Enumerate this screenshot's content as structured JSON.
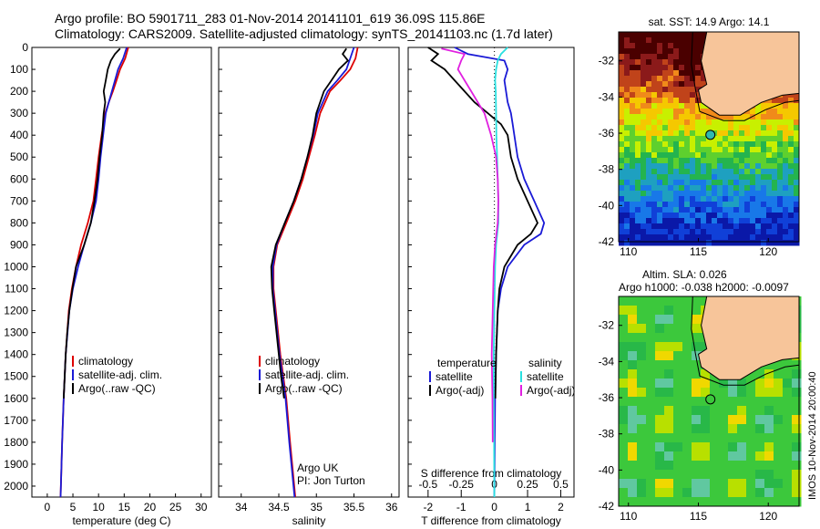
{
  "header": {
    "line1": "Argo profile: BO 5901711_283 01-Nov-2014 20141101_619 36.09S 115.86E",
    "line2": "Climatology: CARS2009. Satellite-adjusted climatology: synTS_20141103.nc (1.7d later)"
  },
  "side_stamp": "IMOS 10-Nov-2014 20:00:40",
  "colors": {
    "climatology": "#dd0000",
    "satellite": "#1a1ad6",
    "argo": "#000000",
    "salinity_satellite": "#29e0e0",
    "salinity_argo": "#e020e0",
    "land": "#f7c59a"
  },
  "chart_data": [
    {
      "type": "line",
      "xlabel": "temperature (deg C)",
      "ylabel": "",
      "xlim": [
        -3,
        32
      ],
      "ylim": [
        0,
        2050
      ],
      "y_reversed": true,
      "xticks": [
        "0",
        "5",
        "10",
        "15",
        "20",
        "25",
        "30"
      ],
      "yticks": [
        "0",
        "100",
        "200",
        "300",
        "400",
        "500",
        "600",
        "700",
        "800",
        "900",
        "1000",
        "1100",
        "1200",
        "1300",
        "1400",
        "1500",
        "1600",
        "1700",
        "1800",
        "1900",
        "2000"
      ],
      "legend": {
        "placement": "center",
        "entries": [
          "climatology",
          "satellite-adj. clim.",
          "Argo(..raw -QC)"
        ]
      },
      "series": [
        {
          "name": "climatology",
          "color": "#dd0000",
          "depth": [
            0,
            50,
            100,
            150,
            200,
            250,
            300,
            400,
            500,
            600,
            700,
            800,
            900,
            1000,
            1100,
            1200,
            1400,
            1600,
            1800,
            2050
          ],
          "values": [
            15.8,
            15.2,
            14.2,
            13.5,
            12.8,
            12.0,
            11.3,
            10.6,
            10.0,
            9.5,
            9.0,
            7.9,
            6.6,
            5.6,
            4.8,
            4.2,
            3.6,
            3.2,
            2.9,
            2.6
          ]
        },
        {
          "name": "satellite-adj. clim.",
          "color": "#1a1ad6",
          "depth": [
            0,
            50,
            100,
            150,
            200,
            250,
            300,
            400,
            500,
            600,
            700,
            800,
            900,
            1000,
            1100,
            1200,
            1400,
            1600,
            1800,
            2050
          ],
          "values": [
            15.5,
            14.8,
            13.8,
            13.2,
            12.6,
            12.0,
            11.4,
            10.9,
            10.4,
            10.0,
            9.5,
            8.5,
            7.2,
            6.0,
            5.0,
            4.3,
            3.6,
            3.2,
            2.9,
            2.6
          ]
        },
        {
          "name": "Argo(..raw -QC)",
          "color": "#000000",
          "depth": [
            5,
            30,
            60,
            100,
            150,
            200,
            250,
            300,
            400,
            500,
            600,
            700,
            800,
            900,
            1000,
            1100,
            1200,
            1300,
            1400,
            1500,
            1600
          ],
          "values": [
            14.2,
            13.2,
            12.4,
            11.8,
            11.4,
            11.0,
            11.3,
            11.0,
            10.7,
            10.2,
            9.8,
            9.2,
            8.5,
            7.2,
            5.6,
            4.9,
            4.3,
            3.9,
            3.6,
            3.4,
            3.2
          ]
        }
      ]
    },
    {
      "type": "line",
      "xlabel": "salinity",
      "xlim": [
        33.7,
        36.1
      ],
      "ylim": [
        0,
        2050
      ],
      "y_reversed": true,
      "xticks": [
        "34",
        "34.5",
        "35",
        "35.5",
        "36"
      ],
      "legend": {
        "placement": "center",
        "entries": [
          "climatology",
          "satellite-adj. clim.",
          "Argo(..raw -QC)"
        ]
      },
      "annotation": [
        "Argo UK",
        "PI: Jon Turton"
      ],
      "series": [
        {
          "name": "climatology",
          "color": "#dd0000",
          "depth": [
            0,
            50,
            100,
            150,
            200,
            300,
            400,
            500,
            600,
            700,
            800,
            900,
            1000,
            1100,
            1200,
            1400,
            1600,
            1800,
            2050
          ],
          "values": [
            35.55,
            35.52,
            35.45,
            35.32,
            35.18,
            35.05,
            34.98,
            34.9,
            34.82,
            34.72,
            34.6,
            34.48,
            34.43,
            34.43,
            34.46,
            34.52,
            34.6,
            34.65,
            34.72
          ]
        },
        {
          "name": "satellite-adj. clim.",
          "color": "#1a1ad6",
          "depth": [
            0,
            50,
            100,
            150,
            200,
            300,
            400,
            500,
            600,
            700,
            800,
            900,
            1000,
            1100,
            1200,
            1400,
            1600,
            1800,
            2050
          ],
          "values": [
            35.5,
            35.45,
            35.4,
            35.28,
            35.15,
            35.02,
            34.96,
            34.88,
            34.8,
            34.7,
            34.58,
            34.47,
            34.42,
            34.42,
            34.45,
            34.51,
            34.59,
            34.64,
            34.71
          ]
        },
        {
          "name": "Argo(..raw -QC)",
          "color": "#000000",
          "depth": [
            5,
            30,
            60,
            100,
            150,
            200,
            300,
            400,
            500,
            600,
            700,
            800,
            900,
            1000,
            1100,
            1200,
            1300,
            1400,
            1500,
            1600
          ],
          "values": [
            35.4,
            35.35,
            35.42,
            35.3,
            35.2,
            35.1,
            35.0,
            34.95,
            34.88,
            34.8,
            34.7,
            34.58,
            34.46,
            34.4,
            34.41,
            34.44,
            34.47,
            34.5,
            34.53,
            34.57
          ]
        }
      ]
    },
    {
      "type": "line",
      "xlabel": "T difference from climatology",
      "xlabel2": "S difference from climatology",
      "xlim": [
        -2.6,
        2.4
      ],
      "ylim": [
        0,
        2050
      ],
      "y_reversed": true,
      "xticks": [
        "-2",
        "-1",
        "0",
        "1",
        "2"
      ],
      "xticks_top": [
        "-0.5",
        "-0.25",
        "0",
        "0.25",
        "0.5"
      ],
      "legend": {
        "placement": "center",
        "entries": [
          "temperature",
          "satellite",
          "Argo(-adj)",
          "salinity",
          "satellite",
          "Argo(-adj)"
        ]
      },
      "series": [
        {
          "name": "satellite",
          "color": "#1a1ad6",
          "depth": [
            0,
            30,
            60,
            100,
            150,
            200,
            250,
            300,
            350,
            400,
            500,
            600,
            700,
            800,
            850,
            900,
            1000,
            1100,
            1200,
            1400,
            1600,
            1800,
            2050
          ],
          "values": [
            -1.2,
            -0.8,
            0.3,
            0.4,
            0.3,
            0.35,
            0.4,
            0.5,
            0.55,
            0.6,
            0.7,
            0.9,
            1.2,
            1.5,
            1.4,
            0.9,
            0.4,
            0.2,
            0.1,
            0.05,
            0.02,
            0.01,
            0.0
          ]
        },
        {
          "name": "Argo(-adj)",
          "color": "#000000",
          "depth": [
            0,
            30,
            60,
            100,
            150,
            200,
            250,
            300,
            350,
            400,
            500,
            600,
            700,
            800,
            850,
            900,
            1000,
            1100,
            1200,
            1400,
            1600
          ],
          "values": [
            -2.0,
            -1.7,
            -1.9,
            -1.5,
            -1.2,
            -0.9,
            -0.6,
            -0.2,
            0.2,
            0.4,
            0.5,
            0.7,
            1.0,
            1.3,
            1.1,
            0.7,
            0.3,
            0.15,
            0.1,
            0.05,
            0.03
          ]
        },
        {
          "name": "satellite",
          "color": "#29e0e0",
          "depth": [
            0,
            30,
            60,
            100,
            150,
            200,
            300,
            400,
            500,
            600,
            700,
            800,
            900,
            1000,
            1200,
            1400,
            1600,
            1800,
            2050
          ],
          "values": [
            0.4,
            0.2,
            0.1,
            0.05,
            0.02,
            0.04,
            0.05,
            0.06,
            0.08,
            0.1,
            0.12,
            0.12,
            0.05,
            0.02,
            0.0,
            -0.02,
            -0.02,
            -0.01,
            0.0
          ]
        },
        {
          "name": "Argo(-adj)",
          "color": "#e020e0",
          "depth": [
            5,
            30,
            60,
            100,
            150,
            200,
            250,
            300,
            400,
            500,
            600,
            700,
            800,
            900,
            1000,
            1200,
            1400,
            1600,
            1800
          ],
          "values": [
            -1.6,
            -0.9,
            -1.0,
            -1.1,
            -0.9,
            -0.7,
            -0.5,
            -0.3,
            -0.1,
            0.05,
            0.1,
            0.12,
            0.1,
            0.02,
            -0.02,
            -0.05,
            -0.08,
            -0.06,
            -0.05
          ]
        }
      ]
    },
    {
      "type": "heatmap",
      "title": "sat. SST: 14.9 Argo: 14.1",
      "xlim": [
        109.3,
        122.2
      ],
      "ylim": [
        -42,
        -30.4
      ],
      "xticks": [
        "110",
        "115",
        "120"
      ],
      "yticks": [
        "-32",
        "-34",
        "-36",
        "-38",
        "-40",
        "-42"
      ],
      "profile_location": [
        115.86,
        -36.09
      ]
    },
    {
      "type": "heatmap",
      "title": "Altim. SLA: 0.026",
      "subtitle": "Argo h1000: -0.038 h2000: -0.0097",
      "xlim": [
        109.3,
        122.2
      ],
      "ylim": [
        -42,
        -30.4
      ],
      "xticks": [
        "110",
        "115",
        "120"
      ],
      "yticks": [
        "-32",
        "-34",
        "-36",
        "-38",
        "-40",
        "-42"
      ],
      "profile_location": [
        115.86,
        -36.09
      ]
    }
  ]
}
